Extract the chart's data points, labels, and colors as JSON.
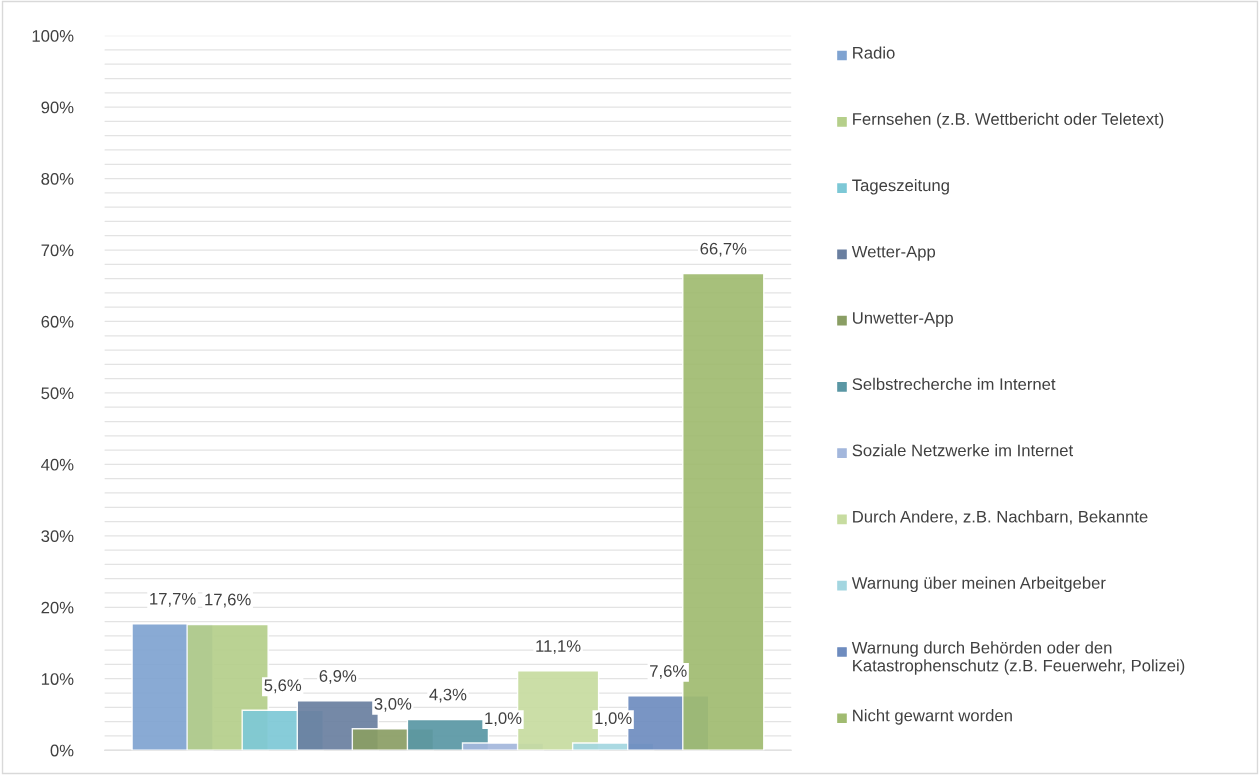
{
  "chart_data": {
    "type": "bar",
    "categories": [
      null
    ],
    "series": [
      {
        "name": "Radio",
        "color": "#7fa3d1",
        "values": [
          17.7
        ]
      },
      {
        "name": "Fernsehen (z.B. Wettbericht oder Teletext)",
        "color": "#b5cf8a",
        "values": [
          17.6
        ]
      },
      {
        "name": "Tageszeitung",
        "color": "#7dc8d6",
        "values": [
          5.6
        ]
      },
      {
        "name": "Wetter-App",
        "color": "#6a7fa0",
        "values": [
          6.9
        ]
      },
      {
        "name": "Unwetter-App",
        "color": "#8a9e64",
        "values": [
          3.0
        ]
      },
      {
        "name": "Selbstrecherche im Internet",
        "color": "#5a97a4",
        "values": [
          4.3
        ]
      },
      {
        "name": "Soziale Netzwerke im Internet",
        "color": "#a3b7dc",
        "values": [
          1.0
        ]
      },
      {
        "name": "Durch Andere, z.B. Nachbarn, Bekannte",
        "color": "#c7dca0",
        "values": [
          11.1
        ]
      },
      {
        "name": "Warnung über meinen Arbeitgeber",
        "color": "#a3d6e0",
        "values": [
          1.0
        ]
      },
      {
        "name": "Warnung durch Behörden oder den Katastrophenschutz (z.B. Feuerwehr, Polizei)",
        "color": "#6e8cbf",
        "values": [
          7.6
        ]
      },
      {
        "name": "Nicht gewarnt worden",
        "color": "#a0bb70",
        "values": [
          66.7
        ]
      }
    ],
    "value_labels": [
      "17,7%",
      "17,6%",
      "5,6%",
      "6,9%",
      "3,0%",
      "4,3%",
      "1,0%",
      "11,1%",
      "1,0%",
      "7,6%",
      "66,7%"
    ],
    "ylim": [
      0,
      100
    ],
    "yticks": [
      {
        "value": 0,
        "label": "0%"
      },
      {
        "value": 2,
        "label": null
      },
      {
        "value": 4,
        "label": null
      },
      {
        "value": 6,
        "label": null
      },
      {
        "value": 8,
        "label": null
      },
      {
        "value": 10,
        "label": "10%"
      },
      {
        "value": 12,
        "label": null
      },
      {
        "value": 14,
        "label": null
      },
      {
        "value": 16,
        "label": null
      },
      {
        "value": 18,
        "label": null
      },
      {
        "value": 20,
        "label": "20%"
      },
      {
        "value": 22,
        "label": null
      },
      {
        "value": 24,
        "label": null
      },
      {
        "value": 26,
        "label": null
      },
      {
        "value": 28,
        "label": null
      },
      {
        "value": 30,
        "label": "30%"
      },
      {
        "value": 32,
        "label": null
      },
      {
        "value": 34,
        "label": null
      },
      {
        "value": 36,
        "label": null
      },
      {
        "value": 38,
        "label": null
      },
      {
        "value": 40,
        "label": "40%"
      },
      {
        "value": 42,
        "label": null
      },
      {
        "value": 44,
        "label": null
      },
      {
        "value": 46,
        "label": null
      },
      {
        "value": 48,
        "label": null
      },
      {
        "value": 50,
        "label": "50%"
      },
      {
        "value": 52,
        "label": null
      },
      {
        "value": 54,
        "label": null
      },
      {
        "value": 56,
        "label": null
      },
      {
        "value": 58,
        "label": null
      },
      {
        "value": 60,
        "label": "60%"
      },
      {
        "value": 62,
        "label": null
      },
      {
        "value": 64,
        "label": null
      },
      {
        "value": 66,
        "label": null
      },
      {
        "value": 68,
        "label": null
      },
      {
        "value": 70,
        "label": "70%"
      },
      {
        "value": 72,
        "label": null
      },
      {
        "value": 74,
        "label": null
      },
      {
        "value": 76,
        "label": null
      },
      {
        "value": 78,
        "label": null
      },
      {
        "value": 80,
        "label": "80%"
      },
      {
        "value": 82,
        "label": null
      },
      {
        "value": 84,
        "label": null
      },
      {
        "value": 86,
        "label": null
      },
      {
        "value": 88,
        "label": null
      },
      {
        "value": 90,
        "label": "90%"
      },
      {
        "value": 92,
        "label": null
      },
      {
        "value": 94,
        "label": null
      },
      {
        "value": 96,
        "label": null
      },
      {
        "value": 98,
        "label": null
      },
      {
        "value": 100,
        "label": "100%"
      }
    ],
    "grid": "y",
    "legend": "right"
  }
}
